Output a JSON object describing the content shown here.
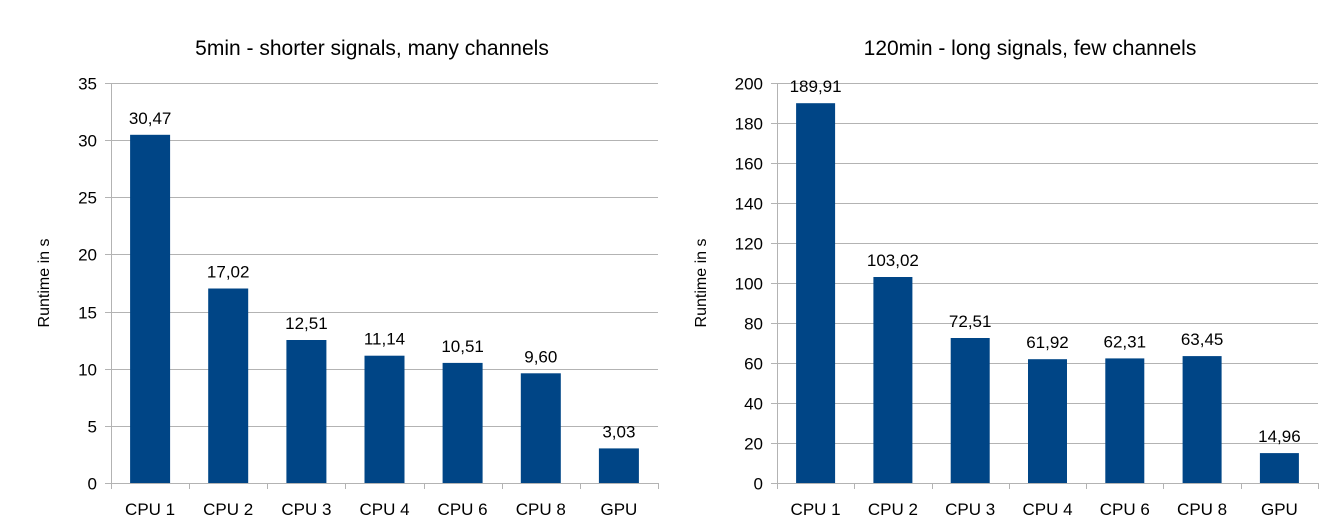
{
  "chart_data": [
    {
      "type": "bar",
      "title": "5min - shorter signals, many channels",
      "xlabel": "",
      "ylabel": "Runtime in s",
      "categories": [
        "CPU 1",
        "CPU 2",
        "CPU 3",
        "CPU 4",
        "CPU 6",
        "CPU 8",
        "GPU"
      ],
      "values": [
        30.47,
        17.02,
        12.51,
        11.14,
        10.51,
        9.6,
        3.03
      ],
      "value_labels": [
        "30,47",
        "17,02",
        "12,51",
        "11,14",
        "10,51",
        "9,60",
        "3,03"
      ],
      "ylim": [
        0,
        35
      ],
      "yticks": [
        0,
        5,
        10,
        15,
        20,
        25,
        30,
        35
      ],
      "grid": true,
      "bar_color": "#004586"
    },
    {
      "type": "bar",
      "title": "120min - long signals, few channels",
      "xlabel": "",
      "ylabel": "Runtime in s",
      "categories": [
        "CPU 1",
        "CPU 2",
        "CPU 3",
        "CPU 4",
        "CPU 6",
        "CPU 8",
        "GPU"
      ],
      "values": [
        189.91,
        103.02,
        72.51,
        61.92,
        62.31,
        63.45,
        14.96
      ],
      "value_labels": [
        "189,91",
        "103,02",
        "72,51",
        "61,92",
        "62,31",
        "63,45",
        "14,96"
      ],
      "ylim": [
        0,
        200
      ],
      "yticks": [
        0,
        20,
        40,
        60,
        80,
        100,
        120,
        140,
        160,
        180,
        200
      ],
      "grid": true,
      "bar_color": "#004586"
    }
  ]
}
